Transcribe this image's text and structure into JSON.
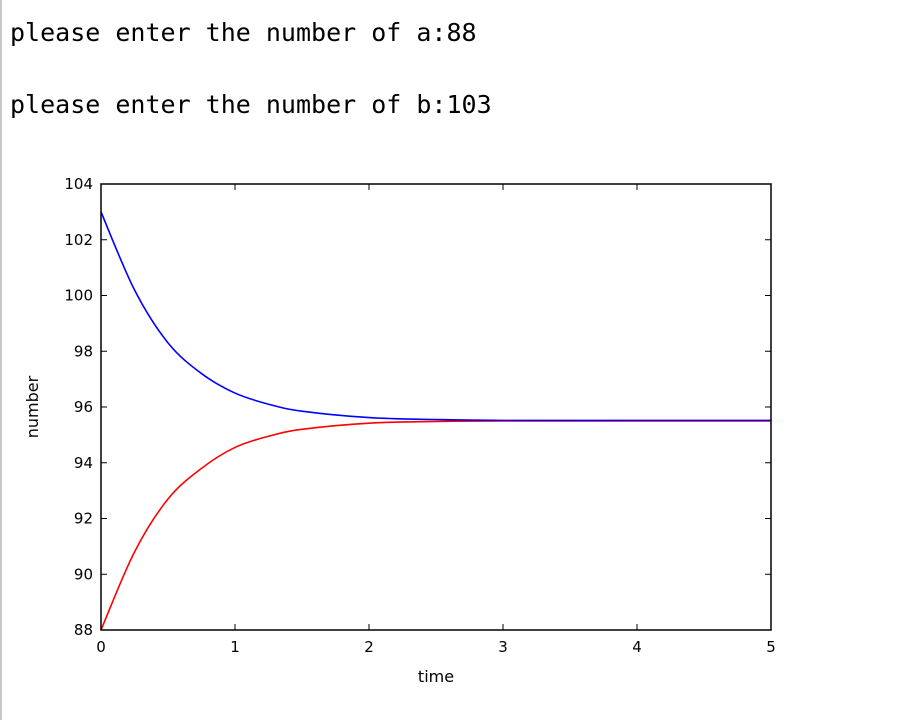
{
  "console": {
    "line_a_prompt": "please enter the number of a:",
    "line_a_value": "88",
    "line_b_prompt": "please enter the number of b:",
    "line_b_value": "103"
  },
  "colors": {
    "series_a": "#ff0000",
    "series_b": "#0000ff"
  },
  "chart_data": {
    "type": "line",
    "xlabel": "time",
    "ylabel": "number",
    "xlim": [
      0,
      5
    ],
    "ylim": [
      88,
      104
    ],
    "xticks": [
      0,
      1,
      2,
      3,
      4,
      5
    ],
    "yticks": [
      88,
      90,
      92,
      94,
      96,
      98,
      100,
      102,
      104
    ],
    "grid": false,
    "series": [
      {
        "color": "#ff0000",
        "x": [
          0,
          0.25,
          0.5,
          0.75,
          1,
          1.25,
          1.5,
          2,
          2.5,
          3,
          4,
          5
        ],
        "y": [
          88,
          90.8,
          92.7,
          93.8,
          94.55,
          94.95,
          95.2,
          95.42,
          95.48,
          95.5,
          95.5,
          95.5
        ]
      },
      {
        "color": "#0000ff",
        "x": [
          0,
          0.25,
          0.5,
          0.75,
          1,
          1.25,
          1.5,
          2,
          2.5,
          3,
          4,
          5
        ],
        "y": [
          103,
          100.2,
          98.3,
          97.2,
          96.5,
          96.1,
          95.85,
          95.62,
          95.55,
          95.52,
          95.52,
          95.52
        ]
      }
    ]
  }
}
